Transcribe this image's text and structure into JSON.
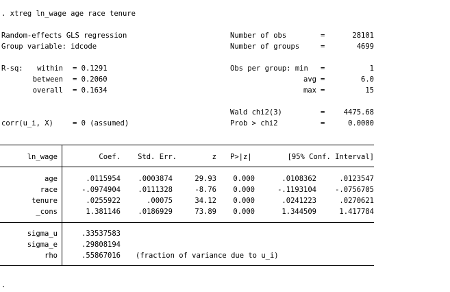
{
  "command": ". xtreg ln_wage age race tenure",
  "header": {
    "model": "Random-effects GLS regression",
    "group_var": "Group variable: idcode",
    "nobs_label": "Number of obs",
    "nobs_value": "28101",
    "ngroups_label": "Number of groups",
    "ngroups_value": "4699",
    "rsq_label": "R-sq:",
    "within_label": "within",
    "within_value": "= 0.1291",
    "between_label": "between",
    "between_value": "= 0.2060",
    "overall_label": "overall",
    "overall_value": "= 0.1634",
    "obs_per_group_label": "Obs per group: min",
    "avg_label": "avg",
    "max_label": "max",
    "min_value": "1",
    "avg_value": "6.0",
    "max_value": "15",
    "wald_label": "Wald chi2(3)",
    "wald_value": "4475.68",
    "prob_label": "Prob > chi2",
    "prob_value": "0.0000",
    "corr_label": "corr(u_i, X)",
    "corr_value": "= 0 (assumed)",
    "eq": "="
  },
  "table": {
    "depvar": "ln_wage",
    "columns": {
      "coef": "Coef.",
      "se": "Std. Err.",
      "z": "z",
      "p": "P>|z|",
      "ci": "[95% Conf. Interval]"
    },
    "rows": [
      {
        "name": "age",
        "coef": ".0115954",
        "se": ".0003874",
        "z": "29.93",
        "p": "0.000",
        "lo": ".0108362",
        "hi": ".0123547"
      },
      {
        "name": "race",
        "coef": "-.0974904",
        "se": ".0111328",
        "z": "-8.76",
        "p": "0.000",
        "lo": "-.1193104",
        "hi": "-.0756705"
      },
      {
        "name": "tenure",
        "coef": ".0255922",
        "se": ".00075",
        "z": "34.12",
        "p": "0.000",
        "lo": ".0241223",
        "hi": ".0270621"
      },
      {
        "name": "_cons",
        "coef": "1.381146",
        "se": ".0186929",
        "z": "73.89",
        "p": "0.000",
        "lo": "1.344509",
        "hi": "1.417784"
      }
    ],
    "extra": [
      {
        "name": "sigma_u",
        "value": ".33537583"
      },
      {
        "name": "sigma_e",
        "value": ".29808194"
      },
      {
        "name": "rho",
        "value": ".55867016"
      }
    ],
    "rho_note": "(fraction of variance due to u_i)"
  },
  "prompt": "."
}
